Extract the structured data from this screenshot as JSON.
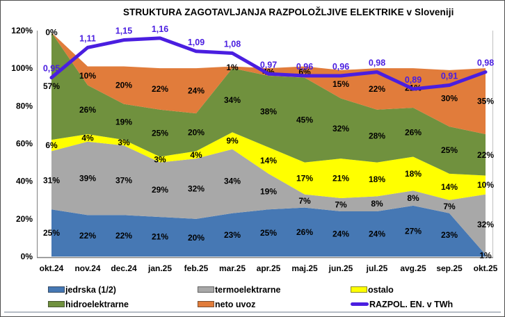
{
  "title": "STRUKTURA ZAGOTAVLJANJA RAZPOLOŽLJIVE ELEKTRIKE v Sloveniji",
  "chart_data": {
    "type": "area",
    "stacked": true,
    "unit": "%",
    "categories": [
      "okt.24",
      "nov.24",
      "dec.24",
      "jan.25",
      "feb.25",
      "mar.25",
      "apr.25",
      "maj.25",
      "jun.25",
      "jul.25",
      "avg.25",
      "sep.25",
      "okt.25"
    ],
    "series": [
      {
        "name": "jedrska (1/2)",
        "color": "#4678b4",
        "values": [
          25,
          22,
          22,
          21,
          20,
          23,
          25,
          26,
          24,
          24,
          27,
          23,
          1
        ]
      },
      {
        "name": "termoelektrarne",
        "color": "#a8a8a8",
        "values": [
          31,
          39,
          37,
          29,
          32,
          34,
          19,
          7,
          7,
          8,
          8,
          7,
          32
        ]
      },
      {
        "name": "ostalo",
        "color": "#ffff00",
        "values": [
          6,
          4,
          3,
          3,
          4,
          9,
          14,
          17,
          21,
          18,
          18,
          14,
          10
        ]
      },
      {
        "name": "hidroelektrarne",
        "color": "#70913e",
        "values": [
          57,
          26,
          19,
          25,
          20,
          34,
          38,
          45,
          32,
          28,
          26,
          25,
          22
        ]
      },
      {
        "name": "neto uvoz",
        "color": "#e17c3b",
        "values": [
          0,
          10,
          20,
          22,
          24,
          1,
          4,
          6,
          15,
          22,
          21,
          30,
          35
        ]
      }
    ],
    "line_series": {
      "name": "RAZPOL. EN. v TWh",
      "color": "#4a1ee0",
      "values": [
        0.95,
        1.11,
        1.15,
        1.16,
        1.09,
        1.08,
        0.97,
        0.96,
        0.96,
        0.98,
        0.89,
        0.91,
        0.98
      ],
      "labels": [
        "0,95",
        "1,11",
        "1,15",
        "1,16",
        "1,09",
        "1,08",
        "0,97",
        "0,96",
        "0,96",
        "0,98",
        "0,89",
        "0,91",
        "0,98"
      ]
    },
    "yaxis": {
      "min": 0,
      "max": 120,
      "ticks": [
        "0%",
        "20%",
        "40%",
        "60%",
        "80%",
        "100%",
        "120%"
      ]
    },
    "grid": false,
    "legend_position": "bottom"
  },
  "legend": {
    "items": [
      {
        "label": "jedrska (1/2)",
        "color": "#4678b4",
        "type": "box"
      },
      {
        "label": "termoelektrarne",
        "color": "#a8a8a8",
        "type": "box"
      },
      {
        "label": "ostalo",
        "color": "#ffff00",
        "type": "box"
      },
      {
        "label": "hidroelektrarne",
        "color": "#70913e",
        "type": "box"
      },
      {
        "label": "neto uvoz",
        "color": "#e17c3b",
        "type": "box"
      },
      {
        "label": "RAZPOL. EN. v TWh",
        "color": "#4a1ee0",
        "type": "line"
      }
    ]
  }
}
